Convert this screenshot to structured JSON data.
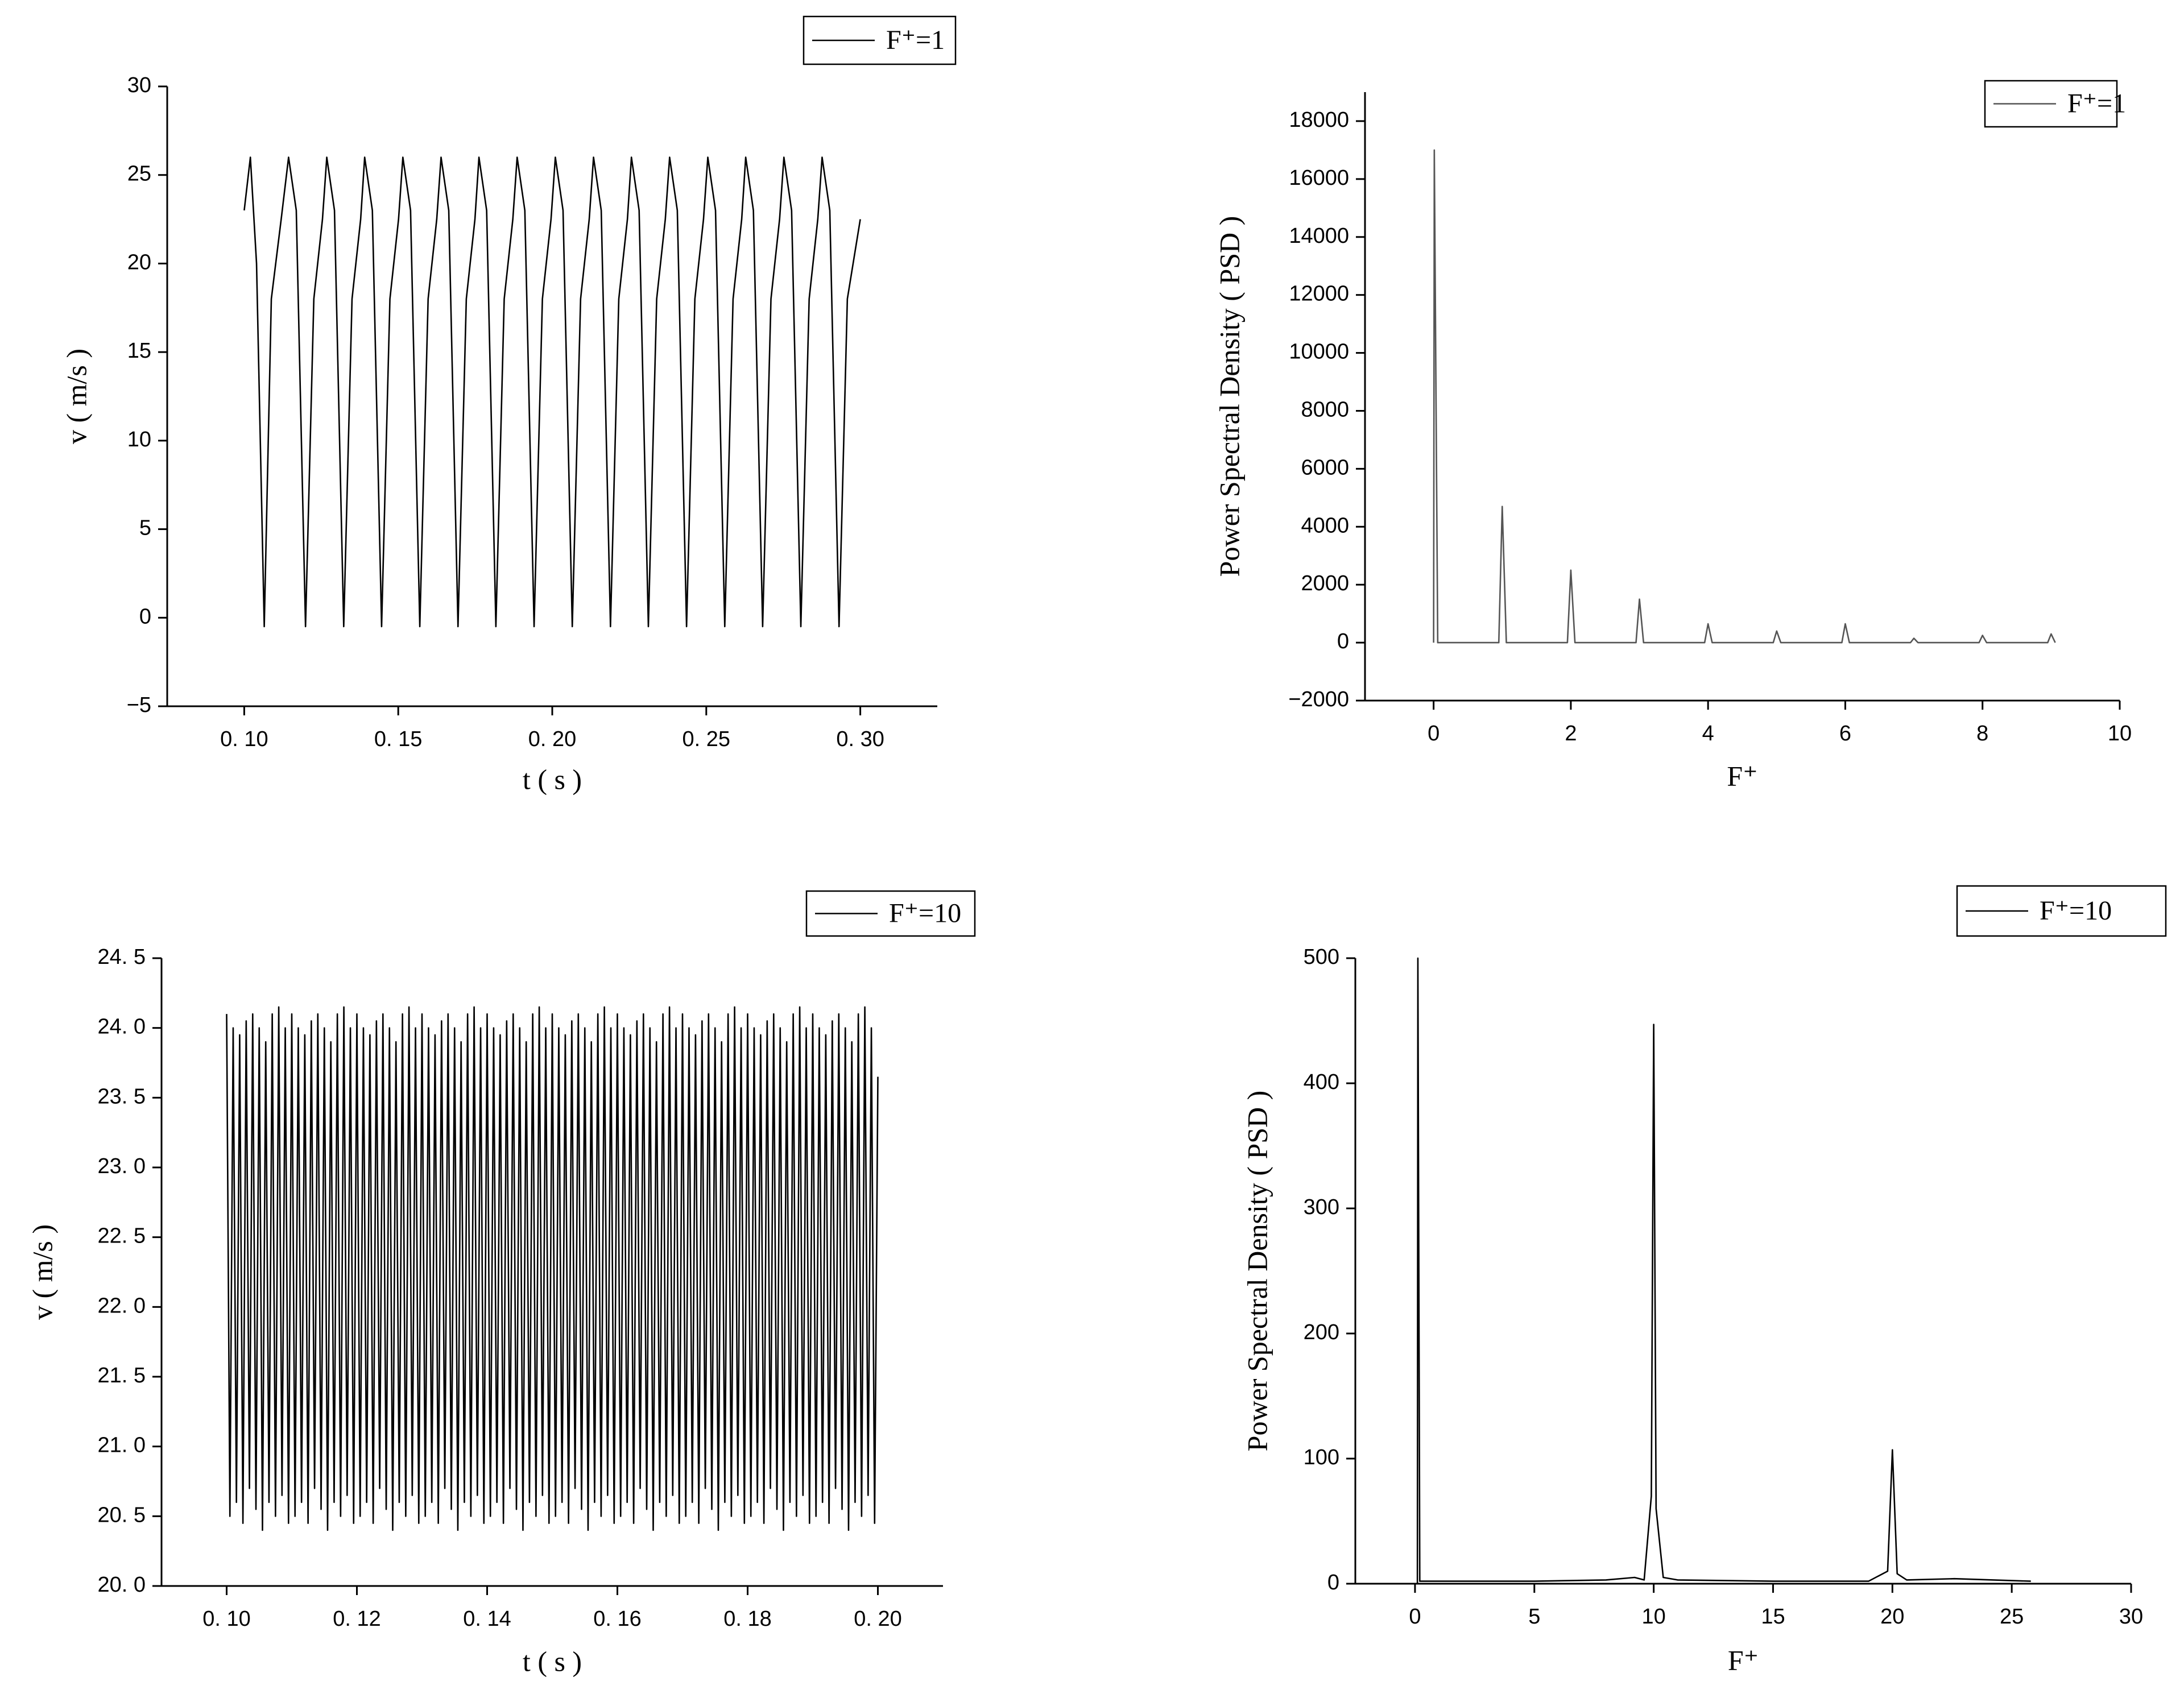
{
  "chart_data": [
    {
      "type": "line",
      "xlabel": "t ( s )",
      "ylabel": "v ( m/s )",
      "legend": "upper right",
      "xlim": [
        0.075,
        0.325
      ],
      "xticks": [
        {
          "value": 0.1,
          "label": "0. 10"
        },
        {
          "value": 0.15,
          "label": "0. 15"
        },
        {
          "value": 0.2,
          "label": "0. 20"
        },
        {
          "value": 0.25,
          "label": "0. 25"
        },
        {
          "value": 0.3,
          "label": "0. 30"
        }
      ],
      "ylim": [
        -5,
        30
      ],
      "yticks": [
        {
          "value": -5,
          "label": "−5"
        },
        0,
        5,
        10,
        15,
        20,
        25,
        30
      ],
      "x": [
        0.1,
        0.102,
        0.104,
        0.1065,
        0.1088,
        0.112,
        0.1144,
        0.1169,
        0.1199,
        0.1226,
        0.1254,
        0.1268,
        0.1293,
        0.1323,
        0.135,
        0.1378,
        0.1391,
        0.1416,
        0.1446,
        0.1473,
        0.1501,
        0.1515,
        0.154,
        0.157,
        0.1597,
        0.1625,
        0.1639,
        0.1664,
        0.1694,
        0.1721,
        0.1749,
        0.1762,
        0.1787,
        0.1817,
        0.1844,
        0.1872,
        0.1886,
        0.1911,
        0.1941,
        0.1968,
        0.1996,
        0.201,
        0.2035,
        0.2065,
        0.2092,
        0.212,
        0.2134,
        0.2159,
        0.2189,
        0.2216,
        0.2244,
        0.2257,
        0.2282,
        0.2312,
        0.2339,
        0.2367,
        0.2381,
        0.2406,
        0.2436,
        0.2463,
        0.2491,
        0.2505,
        0.253,
        0.256,
        0.2587,
        0.2615,
        0.2628,
        0.2653,
        0.2683,
        0.271,
        0.2738,
        0.2752,
        0.2777,
        0.2807,
        0.2834,
        0.2862,
        0.2876,
        0.2901,
        0.2931,
        0.2958,
        0.3
      ],
      "series": [
        {
          "name": "F⁺=1",
          "color": "#000000",
          "values": [
            23,
            26,
            20,
            -0.5,
            18,
            22.5,
            26,
            23,
            -0.5,
            18,
            22.5,
            26,
            23,
            -0.5,
            18,
            22.5,
            26,
            23,
            -0.5,
            18,
            22.5,
            26,
            23,
            -0.5,
            18,
            22.5,
            26,
            23,
            -0.5,
            18,
            22.5,
            26,
            23,
            -0.5,
            18,
            22.5,
            26,
            23,
            -0.5,
            18,
            22.5,
            26,
            23,
            -0.5,
            18,
            22.5,
            26,
            23,
            -0.5,
            18,
            22.5,
            26,
            23,
            -0.5,
            18,
            22.5,
            26,
            23,
            -0.5,
            18,
            22.5,
            26,
            23,
            -0.5,
            18,
            22.5,
            26,
            23,
            -0.5,
            18,
            22.5,
            26,
            23,
            -0.5,
            18,
            22.5,
            26,
            23,
            -0.5,
            18,
            22.5
          ]
        }
      ]
    },
    {
      "type": "line",
      "xlabel": "F⁺",
      "ylabel": "Power Spectral Density ( PSD )",
      "legend": "upper right",
      "xlim": [
        -1,
        10
      ],
      "xticks": [
        0,
        2,
        4,
        6,
        8,
        10
      ],
      "ylim": [
        -2000,
        19000
      ],
      "yticks": [
        {
          "value": -2000,
          "label": "−2000"
        },
        0,
        2000,
        4000,
        6000,
        8000,
        10000,
        12000,
        14000,
        16000,
        18000
      ],
      "x": [
        0,
        0.01,
        0.06,
        0.95,
        1,
        1.06,
        1.95,
        2,
        2.06,
        2.95,
        3,
        3.06,
        3.95,
        4,
        4.06,
        4.95,
        5,
        5.06,
        5.95,
        6,
        6.06,
        6.95,
        7,
        7.06,
        7.95,
        8,
        8.06,
        8.95,
        9,
        9.06
      ],
      "series": [
        {
          "name": "F⁺=1",
          "color": "#555555",
          "values": [
            0,
            17000,
            0,
            0,
            4700,
            0,
            0,
            2500,
            0,
            0,
            1500,
            0,
            0,
            650,
            0,
            0,
            400,
            0,
            0,
            650,
            0,
            0,
            150,
            0,
            0,
            250,
            0,
            0,
            300,
            0
          ]
        }
      ]
    },
    {
      "type": "line",
      "xlabel": "t ( s )",
      "ylabel": "v ( m/s )",
      "legend": "upper right",
      "xlim": [
        0.09,
        0.21
      ],
      "xticks": [
        {
          "value": 0.1,
          "label": "0. 10"
        },
        {
          "value": 0.12,
          "label": "0. 12"
        },
        {
          "value": 0.14,
          "label": "0. 14"
        },
        {
          "value": 0.16,
          "label": "0. 16"
        },
        {
          "value": 0.18,
          "label": "0. 18"
        },
        {
          "value": 0.2,
          "label": "0. 20"
        }
      ],
      "ylim": [
        20,
        24.5
      ],
      "yticks": [
        {
          "value": 20,
          "label": "20. 0"
        },
        {
          "value": 20.5,
          "label": "20. 5"
        },
        {
          "value": 21,
          "label": "21. 0"
        },
        {
          "value": 21.5,
          "label": "21. 5"
        },
        {
          "value": 22,
          "label": "22. 0"
        },
        {
          "value": 22.5,
          "label": "22. 5"
        },
        {
          "value": 23,
          "label": "23. 0"
        },
        {
          "value": 23.5,
          "label": "23. 5"
        },
        {
          "value": 24,
          "label": "24. 0"
        },
        {
          "value": 24.5,
          "label": "24. 5"
        }
      ],
      "x": [
        0.1,
        0.1005,
        0.101,
        0.1015,
        0.102,
        0.1025,
        0.103,
        0.1035,
        0.104,
        0.1045,
        0.105,
        0.1055,
        0.106,
        0.1065,
        0.107,
        0.1075,
        0.108,
        0.1085,
        0.109,
        0.1095,
        0.11,
        0.1105,
        0.111,
        0.1115,
        0.112,
        0.1125,
        0.113,
        0.1135,
        0.114,
        0.1145,
        0.115,
        0.1155,
        0.116,
        0.1165,
        0.117,
        0.1175,
        0.118,
        0.1185,
        0.119,
        0.1195,
        0.12,
        0.1205,
        0.121,
        0.1215,
        0.122,
        0.1225,
        0.123,
        0.1235,
        0.124,
        0.1245,
        0.125,
        0.1255,
        0.126,
        0.1265,
        0.127,
        0.1275,
        0.128,
        0.1285,
        0.129,
        0.1295,
        0.13,
        0.1305,
        0.131,
        0.1315,
        0.132,
        0.1325,
        0.133,
        0.1335,
        0.134,
        0.1345,
        0.135,
        0.1355,
        0.136,
        0.1365,
        0.137,
        0.1375,
        0.138,
        0.1385,
        0.139,
        0.1395,
        0.14,
        0.1405,
        0.141,
        0.1415,
        0.142,
        0.1425,
        0.143,
        0.1435,
        0.144,
        0.1445,
        0.145,
        0.1455,
        0.146,
        0.1465,
        0.147,
        0.1475,
        0.148,
        0.1485,
        0.149,
        0.1495,
        0.15,
        0.1505,
        0.151,
        0.1515,
        0.152,
        0.1525,
        0.153,
        0.1535,
        0.154,
        0.1545,
        0.155,
        0.1555,
        0.156,
        0.1565,
        0.157,
        0.1575,
        0.158,
        0.1585,
        0.159,
        0.1595,
        0.16,
        0.1605,
        0.161,
        0.1615,
        0.162,
        0.1625,
        0.163,
        0.1635,
        0.164,
        0.1645,
        0.165,
        0.1655,
        0.166,
        0.1665,
        0.167,
        0.1675,
        0.168,
        0.1685,
        0.169,
        0.1695,
        0.17,
        0.1705,
        0.171,
        0.1715,
        0.172,
        0.1725,
        0.173,
        0.1735,
        0.174,
        0.1745,
        0.175,
        0.1755,
        0.176,
        0.1765,
        0.177,
        0.1775,
        0.178,
        0.1785,
        0.179,
        0.1795,
        0.18,
        0.1805,
        0.181,
        0.1815,
        0.182,
        0.1825,
        0.183,
        0.1835,
        0.184,
        0.1845,
        0.185,
        0.1855,
        0.186,
        0.1865,
        0.187,
        0.1875,
        0.188,
        0.1885,
        0.189,
        0.1895,
        0.19,
        0.1905,
        0.191,
        0.1915,
        0.192,
        0.1925,
        0.193,
        0.1935,
        0.194,
        0.1945,
        0.195,
        0.1955,
        0.196,
        0.1965,
        0.197,
        0.1975,
        0.198,
        0.1985,
        0.199,
        0.1995,
        0.2
      ],
      "series": [
        {
          "name": "F⁺=10",
          "color": "#000000",
          "values": [
            24.1,
            20.5,
            24.0,
            20.6,
            23.95,
            20.45,
            24.05,
            20.7,
            24.1,
            20.55,
            24.0,
            20.4,
            23.9,
            20.6,
            24.1,
            20.5,
            24.15,
            20.65,
            24.0,
            20.45,
            24.1,
            20.5,
            24.0,
            20.6,
            23.95,
            20.45,
            24.05,
            20.7,
            24.1,
            20.55,
            24.0,
            20.4,
            23.9,
            20.6,
            24.1,
            20.5,
            24.15,
            20.65,
            24.0,
            20.45,
            24.1,
            20.5,
            24.0,
            20.6,
            23.95,
            20.45,
            24.05,
            20.7,
            24.1,
            20.55,
            24.0,
            20.4,
            23.9,
            20.6,
            24.1,
            20.5,
            24.15,
            20.65,
            24.0,
            20.45,
            24.1,
            20.5,
            24.0,
            20.6,
            23.95,
            20.45,
            24.05,
            20.7,
            24.1,
            20.55,
            24.0,
            20.4,
            23.9,
            20.6,
            24.1,
            20.5,
            24.15,
            20.65,
            24.0,
            20.45,
            24.1,
            20.5,
            24.0,
            20.6,
            23.95,
            20.45,
            24.05,
            20.7,
            24.1,
            20.55,
            24.0,
            20.4,
            23.9,
            20.6,
            24.1,
            20.5,
            24.15,
            20.65,
            24.0,
            20.45,
            24.1,
            20.5,
            24.0,
            20.6,
            23.95,
            20.45,
            24.05,
            20.7,
            24.1,
            20.55,
            24.0,
            20.4,
            23.9,
            20.6,
            24.1,
            20.5,
            24.15,
            20.65,
            24.0,
            20.45,
            24.1,
            20.5,
            24.0,
            20.6,
            23.95,
            20.45,
            24.05,
            20.7,
            24.1,
            20.55,
            24.0,
            20.4,
            23.9,
            20.6,
            24.1,
            20.5,
            24.15,
            20.65,
            24.0,
            20.45,
            24.1,
            20.5,
            24.0,
            20.6,
            23.95,
            20.45,
            24.05,
            20.7,
            24.1,
            20.55,
            24.0,
            20.4,
            23.9,
            20.6,
            24.1,
            20.5,
            24.15,
            20.65,
            24.0,
            20.45,
            24.1,
            20.5,
            24.0,
            20.6,
            23.95,
            20.45,
            24.05,
            20.7,
            24.1,
            20.55,
            24.0,
            20.4,
            23.9,
            20.6,
            24.1,
            20.5,
            24.15,
            20.65,
            24.0,
            20.45,
            24.1,
            20.5,
            24.0,
            20.6,
            23.95,
            20.45,
            24.05,
            20.7,
            24.1,
            20.55,
            24.0,
            20.4,
            23.9,
            20.6,
            24.1,
            20.5,
            24.15,
            20.65,
            24.0,
            20.45,
            23.65
          ]
        }
      ]
    },
    {
      "type": "line",
      "xlabel": "F⁺",
      "ylabel": "Power Spectral Density ( PSD )",
      "legend": "upper right",
      "xlim": [
        -2.5,
        30
      ],
      "xticks": [
        0,
        5,
        10,
        15,
        20,
        25,
        30
      ],
      "ylim": [
        0,
        500
      ],
      "yticks": [
        0,
        100,
        200,
        300,
        400,
        500
      ],
      "x": [
        0.1,
        0.12,
        0.2,
        5,
        8,
        9.2,
        9.6,
        9.9,
        10,
        10.1,
        10.4,
        11,
        15,
        19,
        19.8,
        20,
        20.2,
        20.6,
        22.6,
        25.8
      ],
      "series": [
        {
          "name": "F⁺=10",
          "color": "#000000",
          "values": [
            0,
            500,
            2,
            2,
            3,
            5,
            3,
            70,
            447,
            60,
            5,
            3,
            2,
            2,
            10,
            107,
            8,
            3,
            4,
            2
          ]
        }
      ]
    }
  ]
}
